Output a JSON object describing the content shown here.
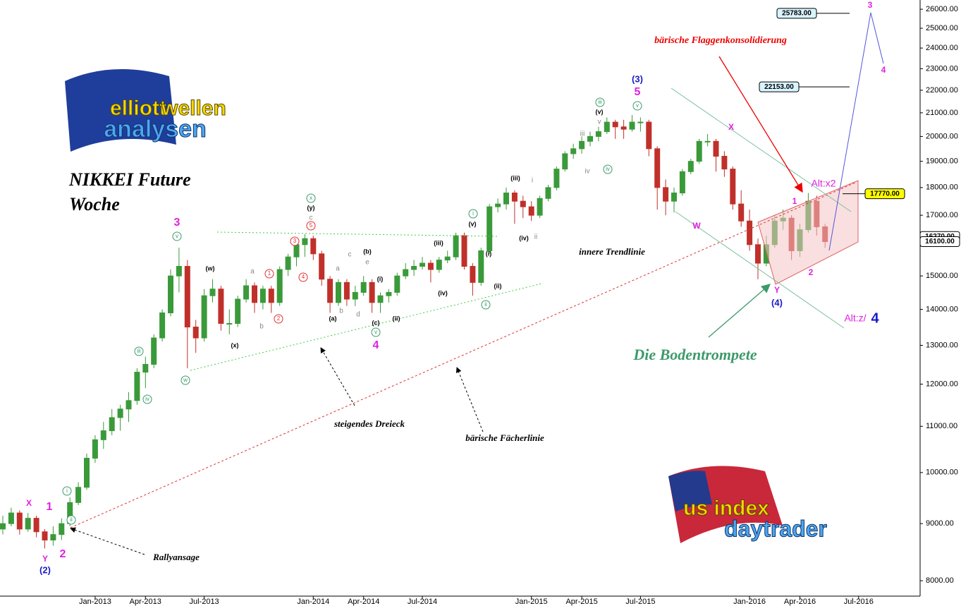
{
  "chart_data": {
    "type": "candlestick",
    "log_scale": true,
    "up_color": "#3a9a3a",
    "down_color": "#c0302a",
    "ylim": [
      7750,
      26500
    ],
    "yticks": [
      {
        "value": 8000,
        "label": "8000.00"
      },
      {
        "value": 9000,
        "label": "9000.00"
      },
      {
        "value": 10000,
        "label": "10000.00"
      },
      {
        "value": 11000,
        "label": "11000.00"
      },
      {
        "value": 12000,
        "label": "12000.00"
      },
      {
        "value": 13000,
        "label": "13000.00"
      },
      {
        "value": 14000,
        "label": "14000.00"
      },
      {
        "value": 15000,
        "label": "15000.00"
      },
      {
        "value": 16000,
        "label": "16000.00"
      },
      {
        "value": 17000,
        "label": "17000.00"
      },
      {
        "value": 18000,
        "label": "18000.00"
      },
      {
        "value": 19000,
        "label": "19000.00"
      },
      {
        "value": 20000,
        "label": "20000.00"
      },
      {
        "value": 21000,
        "label": "21000.00"
      },
      {
        "value": 22000,
        "label": "22000.00"
      },
      {
        "value": 23000,
        "label": "23000.00"
      },
      {
        "value": 24000,
        "label": "24000.00"
      },
      {
        "value": 25000,
        "label": "25000.00"
      },
      {
        "value": 26000,
        "label": "26000.00"
      }
    ],
    "categories": [
      null,
      null,
      null,
      null,
      null,
      null,
      null,
      null,
      null,
      null,
      null,
      "Jan-2013",
      null,
      null,
      null,
      null,
      null,
      "Apr-2013",
      null,
      null,
      null,
      null,
      null,
      null,
      "Jul-2013",
      null,
      null,
      null,
      null,
      null,
      null,
      null,
      null,
      null,
      null,
      null,
      null,
      "Jan-2014",
      null,
      null,
      null,
      null,
      null,
      "Apr-2014",
      null,
      null,
      null,
      null,
      null,
      null,
      "Jul-2014",
      null,
      null,
      null,
      null,
      null,
      null,
      null,
      null,
      null,
      null,
      null,
      null,
      "Jan-2015",
      null,
      null,
      null,
      null,
      null,
      "Apr-2015",
      null,
      null,
      null,
      null,
      null,
      null,
      "Jul-2015",
      null,
      null,
      null,
      null,
      null,
      null,
      null,
      null,
      null,
      null,
      null,
      null,
      "Jan-2016",
      null,
      null,
      null,
      null,
      null,
      "Apr-2016",
      null,
      null,
      null,
      null,
      null,
      null,
      "Jul-2016",
      null,
      null,
      null,
      null,
      null,
      null,
      null
    ],
    "open": [
      8900,
      9000,
      9200,
      8900,
      9100,
      8850,
      8700,
      8800,
      9000,
      9400,
      9700,
      10300,
      10700,
      10900,
      11200,
      11400,
      11600,
      12300,
      12500,
      13200,
      13900,
      15000,
      15300,
      13500,
      13200,
      14400,
      14600,
      13600,
      13600,
      14300,
      14700,
      14200,
      14600,
      14200,
      15200,
      15600,
      16000,
      16200,
      15700,
      14900,
      14200,
      14800,
      14300,
      14500,
      14800,
      14200,
      14400,
      14500,
      15000,
      15200,
      15300,
      15400,
      15200,
      15500,
      15600,
      16300,
      15300,
      14800,
      15800,
      17300,
      17400,
      17800,
      17500,
      17300,
      17000,
      17600,
      18000,
      18700,
      19300,
      19500,
      19800,
      20000,
      20200,
      20600,
      20400,
      20300,
      20600,
      20600,
      19500,
      18000,
      17500,
      17800,
      18600,
      19000,
      19800,
      19800,
      19200,
      18700,
      17400,
      16800,
      16000,
      15400,
      16000,
      16800,
      16900,
      15800,
      16500,
      17500,
      16600,
      null,
      null,
      null,
      null,
      null,
      null,
      null,
      null,
      null,
      null,
      null
    ],
    "high": [
      9150,
      9300,
      9250,
      9200,
      9150,
      8900,
      8950,
      9100,
      9500,
      9800,
      10400,
      10800,
      11100,
      11400,
      11500,
      11800,
      12400,
      12700,
      13300,
      14000,
      15200,
      15900,
      15500,
      13700,
      14600,
      14900,
      14700,
      14000,
      14400,
      14900,
      14800,
      14700,
      14700,
      15300,
      15700,
      16100,
      16350,
      16300,
      15800,
      15000,
      14900,
      14900,
      14700,
      15000,
      14900,
      14500,
      14600,
      15100,
      15400,
      15500,
      15600,
      15500,
      15600,
      15800,
      16400,
      16400,
      15400,
      15900,
      17400,
      17600,
      18000,
      17900,
      17700,
      17500,
      17700,
      18100,
      18800,
      19400,
      19700,
      20000,
      20200,
      20400,
      20800,
      20700,
      20700,
      20900,
      20800,
      20700,
      19600,
      18300,
      18000,
      18700,
      19100,
      19900,
      20100,
      19900,
      19400,
      18800,
      17900,
      17200,
      16200,
      16300,
      17000,
      17200,
      17000,
      16700,
      17800,
      17700,
      16700,
      null,
      null,
      null,
      null,
      null,
      null,
      null,
      null,
      null,
      null,
      null
    ],
    "low": [
      8800,
      8950,
      8800,
      8850,
      8750,
      8550,
      8600,
      8700,
      8950,
      9350,
      9650,
      10200,
      10500,
      10800,
      10900,
      11100,
      11500,
      11900,
      12400,
      13100,
      13800,
      14500,
      12400,
      12800,
      13100,
      14200,
      13400,
      13300,
      13500,
      14200,
      13900,
      14000,
      13900,
      14100,
      15000,
      15300,
      15600,
      15500,
      14700,
      13900,
      14100,
      14100,
      14100,
      14400,
      13900,
      13900,
      14200,
      14400,
      14900,
      15000,
      15200,
      14800,
      15100,
      15400,
      15500,
      15200,
      14400,
      14700,
      15700,
      17100,
      17200,
      16700,
      16900,
      16800,
      16900,
      17500,
      17900,
      18600,
      19100,
      19300,
      19600,
      19800,
      20100,
      19900,
      19900,
      20200,
      20200,
      19200,
      17200,
      17000,
      17100,
      17700,
      18500,
      18900,
      19600,
      18600,
      18400,
      17200,
      16600,
      15800,
      14900,
      15300,
      15900,
      16500,
      15500,
      15600,
      16400,
      16300,
      15900,
      null,
      null,
      null,
      null,
      null,
      null,
      null,
      null,
      null,
      null,
      null
    ],
    "close": [
      9000,
      9200,
      8900,
      9100,
      8850,
      8700,
      8800,
      9000,
      9400,
      9700,
      10300,
      10700,
      10900,
      11200,
      11400,
      11600,
      12300,
      12500,
      13200,
      13900,
      15000,
      15300,
      13500,
      13200,
      14400,
      14600,
      13600,
      13600,
      14300,
      14700,
      14200,
      14600,
      14200,
      15200,
      15600,
      16000,
      16200,
      15700,
      14900,
      14200,
      14800,
      14300,
      14500,
      14800,
      14200,
      14400,
      14500,
      15000,
      15200,
      15300,
      15400,
      15200,
      15500,
      15600,
      16300,
      15300,
      14800,
      15800,
      17300,
      17400,
      17800,
      17500,
      17300,
      17000,
      17600,
      18000,
      18700,
      19300,
      19500,
      19800,
      20000,
      20200,
      20600,
      20400,
      20300,
      20600,
      20600,
      19500,
      18000,
      17500,
      17800,
      18600,
      19000,
      19800,
      19800,
      19200,
      18700,
      17400,
      16800,
      16000,
      15400,
      16000,
      16800,
      16900,
      15800,
      16500,
      17500,
      16600,
      16100,
      null,
      null,
      null,
      null,
      null,
      null,
      null,
      null,
      null,
      null,
      null
    ],
    "price_labels": [
      {
        "value": 25783,
        "label": "25783.00"
      },
      {
        "value": 22153,
        "label": "22153.00"
      },
      {
        "value": 17770,
        "label": "17770.00"
      },
      {
        "value": 16270,
        "label": "16270.00"
      },
      {
        "value": 16100,
        "label": "16100.00"
      }
    ],
    "wave_labels": [
      "X",
      "1",
      "Y",
      "2",
      "(2)",
      "i",
      "ii",
      "iii",
      "iv",
      "v",
      "3",
      "w",
      "(w)",
      "(x)",
      "a",
      "b",
      "1",
      "2",
      "3",
      "4",
      "5",
      "c",
      "(y)",
      "x",
      "(a)",
      "a",
      "b",
      "c",
      "d",
      "(b)",
      "e",
      "(i)",
      "(c)",
      "v",
      "4",
      "(ii)",
      "(iii)",
      "(iv)",
      "(v)",
      "i",
      "(i)",
      "(ii)",
      "ii",
      "(iii)",
      "i",
      "(iv)",
      "ii",
      "iii",
      "iv",
      "(v)",
      "v",
      "iii",
      "iv",
      "(3)",
      "5",
      "v",
      "X",
      "W",
      "1",
      "2",
      "Y",
      "(4)",
      "Alt:x2",
      "Alt:z/",
      "4",
      "3",
      "4"
    ],
    "annotations": [
      "NIKKEI Future",
      "Woche",
      "bärische Flaggenkonsolidierung",
      "innere Trendlinie",
      "steigendes Dreieck",
      "bärische Fächerlinie",
      "Rallyansage",
      "Die Bodentrompete"
    ]
  },
  "logos": {
    "top_left": [
      "elliott",
      "wellen",
      "analysen"
    ],
    "bottom_right": [
      "us index",
      "daytrader"
    ]
  }
}
